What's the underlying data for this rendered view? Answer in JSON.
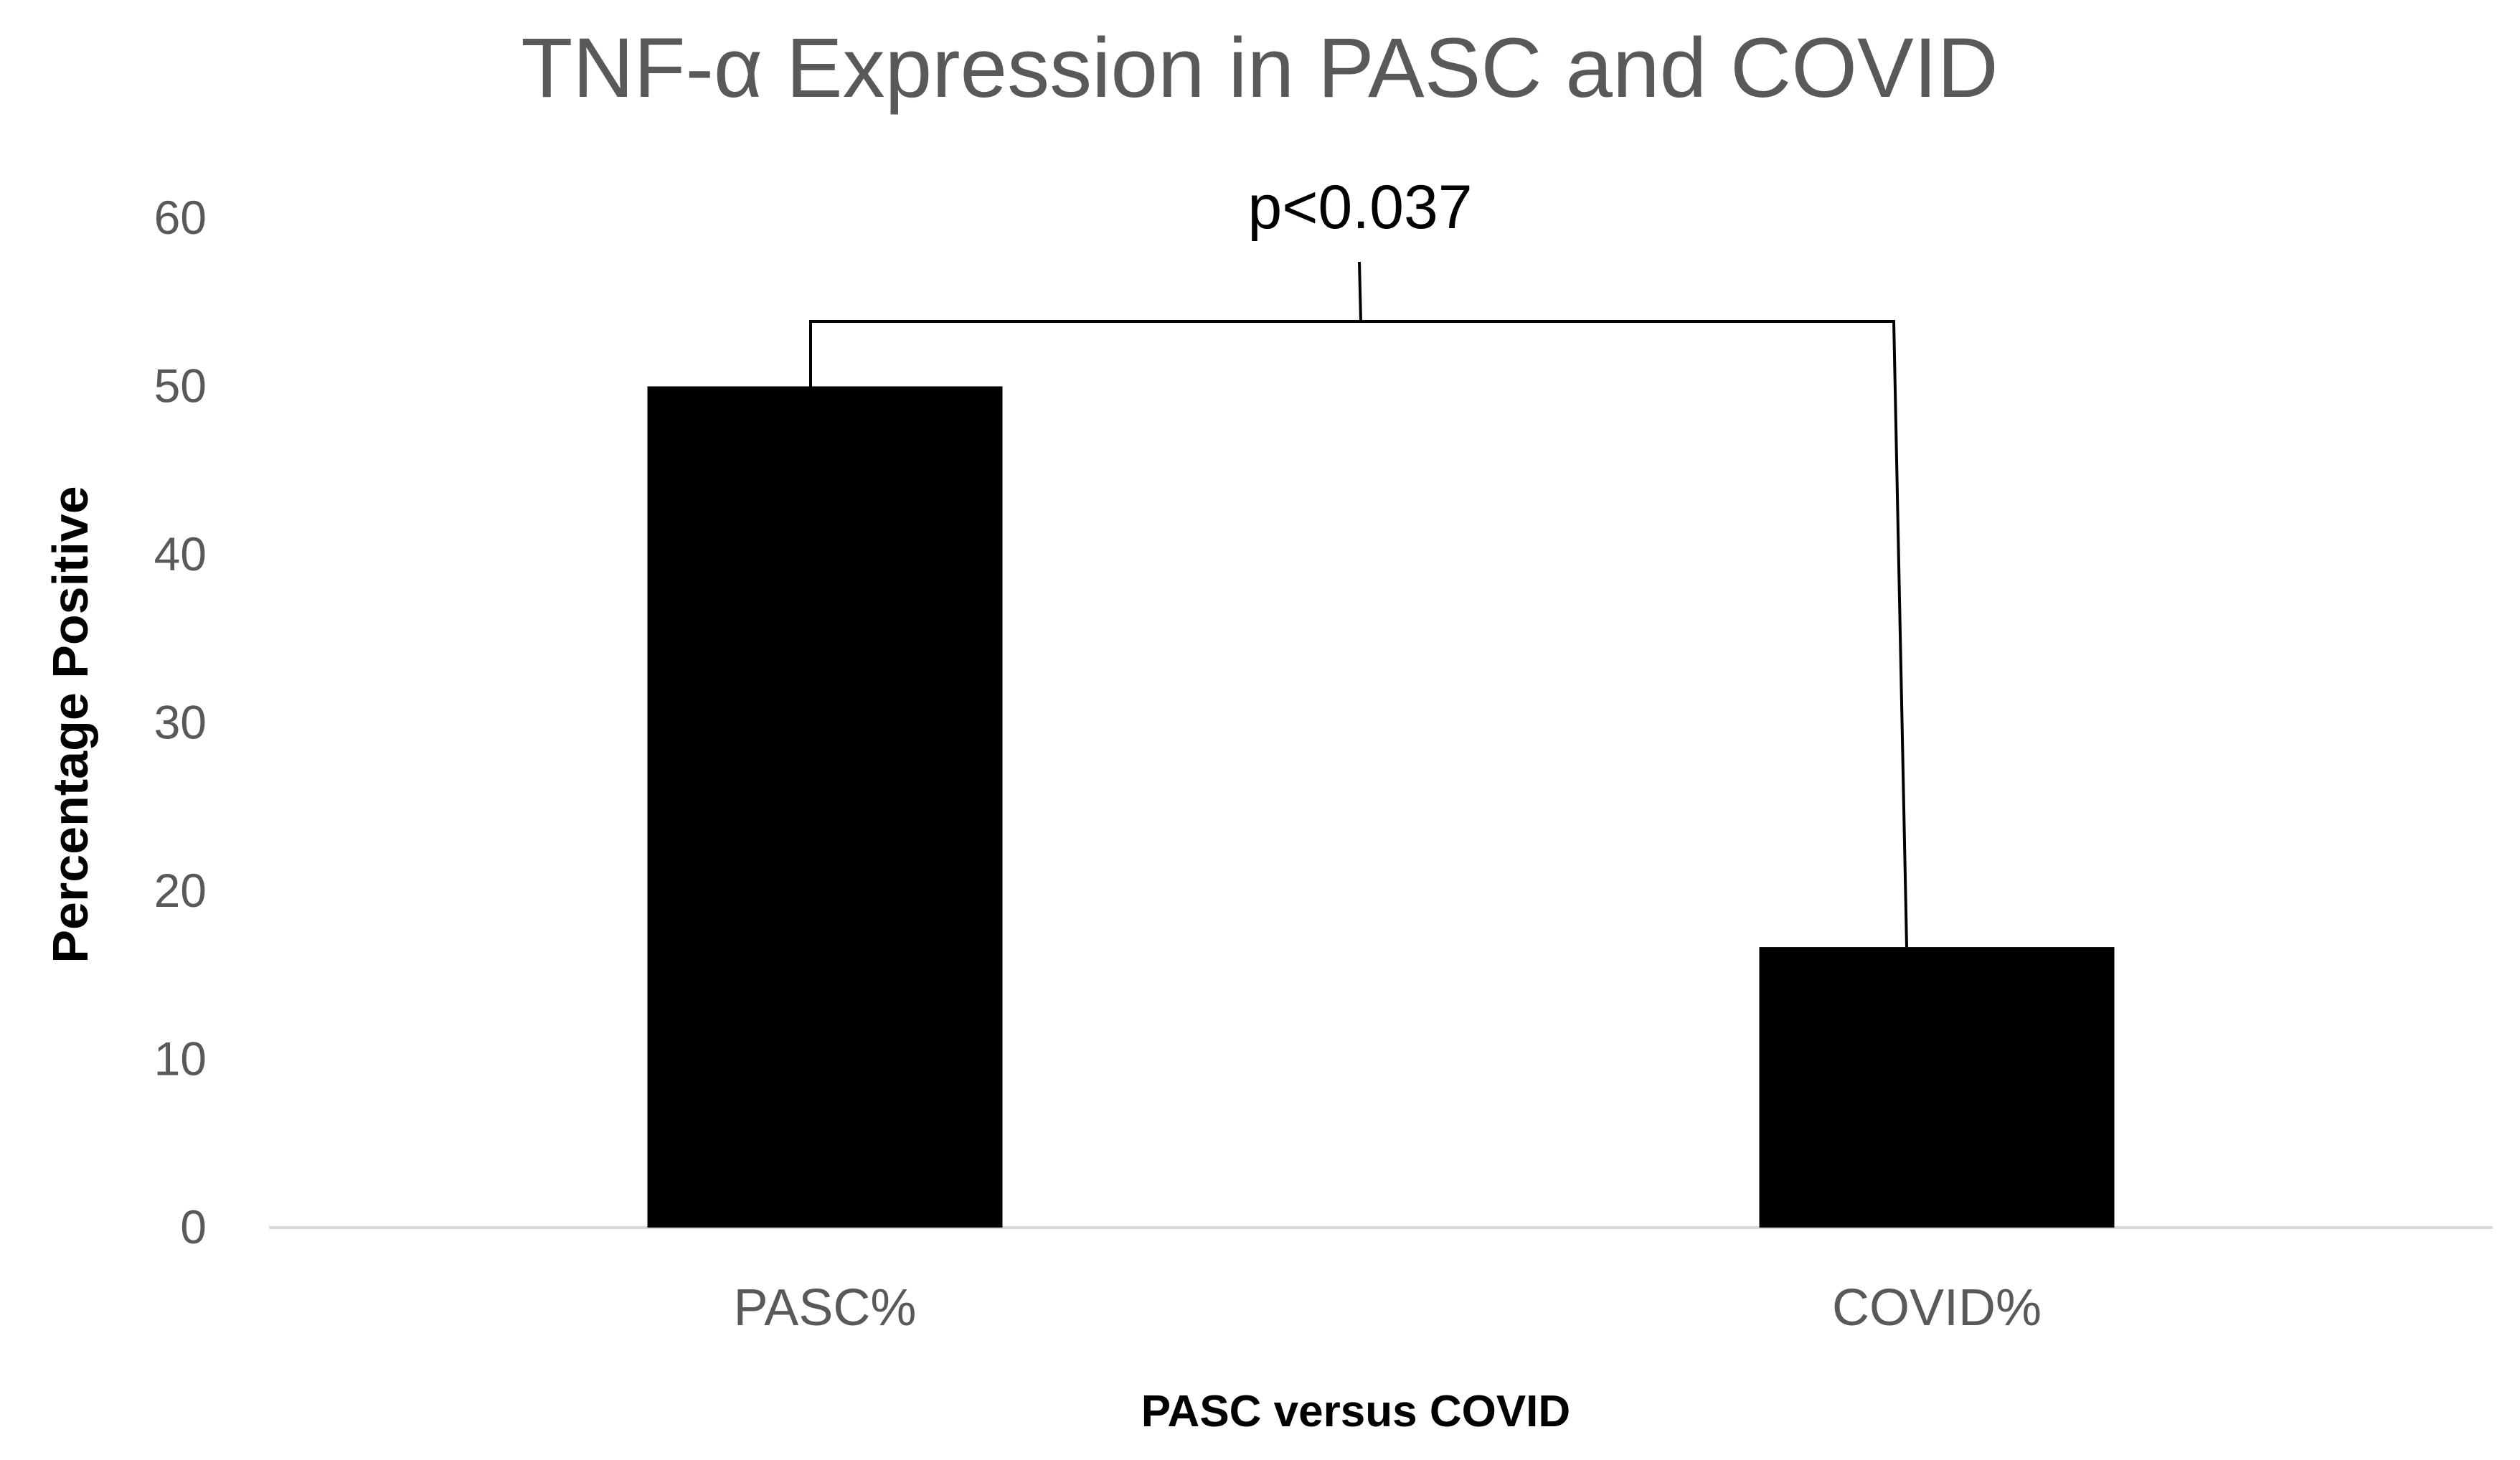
{
  "chart_data": {
    "type": "bar",
    "title": "TNF-α Expression in PASC and COVID",
    "xlabel": "PASC versus COVID",
    "ylabel": "Percentage Positive",
    "categories": [
      "PASC%",
      "COVID%"
    ],
    "values": [
      50,
      16.67
    ],
    "ylim": [
      0,
      60
    ],
    "yticks": [
      0,
      10,
      20,
      30,
      40,
      50,
      60
    ],
    "grid": false,
    "legend": "none",
    "annotations": [
      {
        "text": "p<0.037",
        "between": [
          "PASC%",
          "COVID%"
        ]
      }
    ],
    "colors": {
      "bar": "#000000",
      "title": "#595959",
      "tick_label": "#595959",
      "axis_line": "#d9d9d9",
      "axis_title": "#000000",
      "annotation": "#000000"
    }
  }
}
